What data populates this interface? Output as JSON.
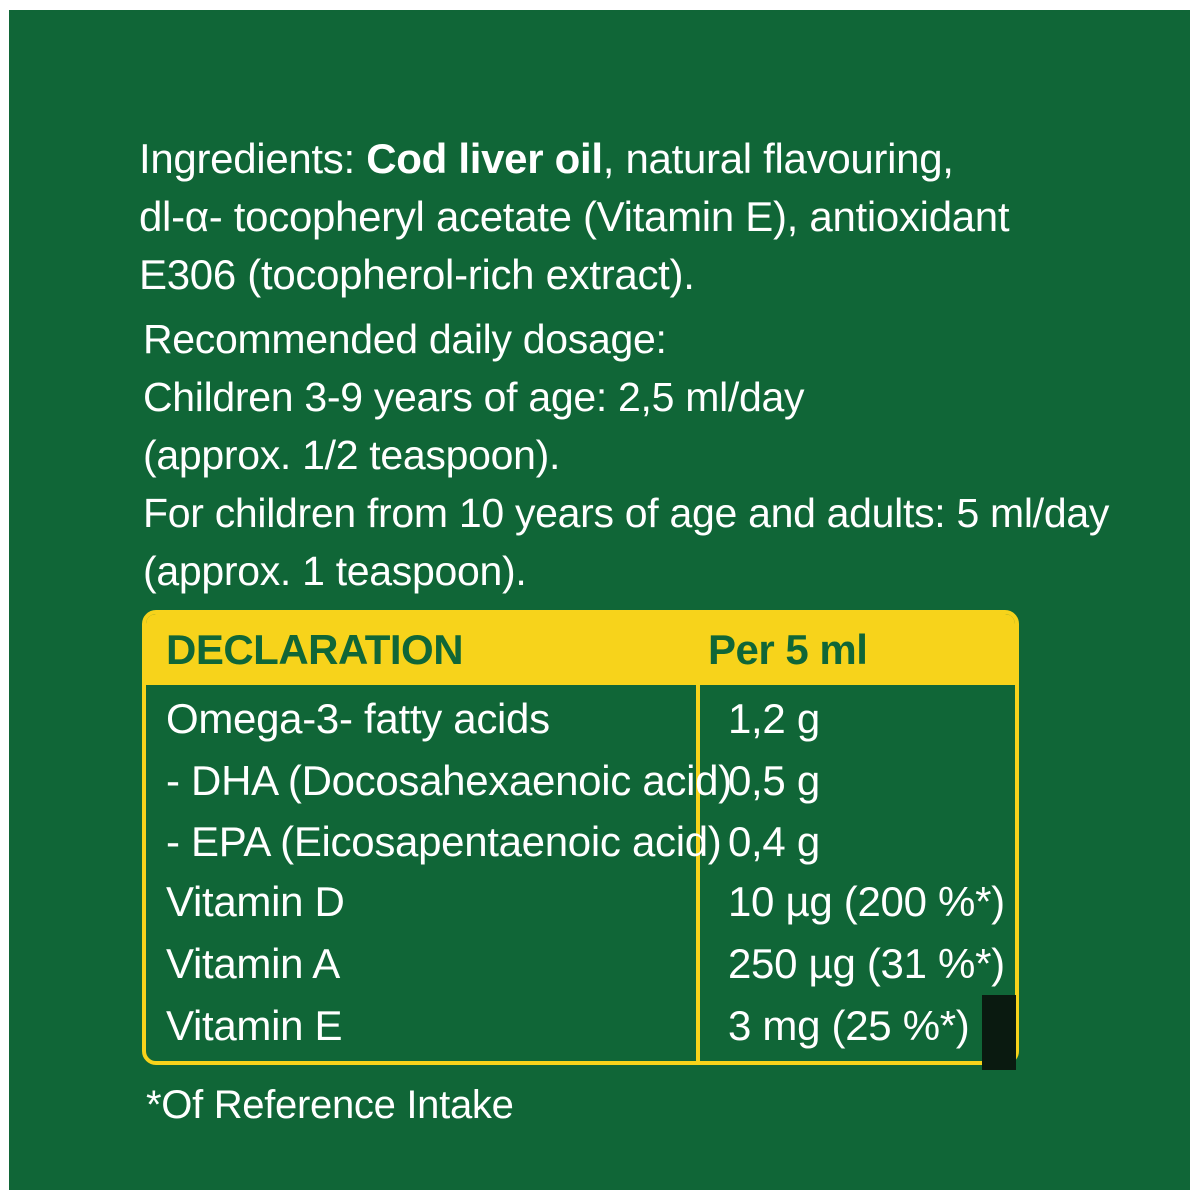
{
  "ingredients": {
    "prefix": "Ingredients: ",
    "highlight": "Cod liver oil",
    "rest_line1": ", natural flavouring,",
    "line2": "dl-α- tocopheryl acetate (Vitamin E), antioxidant",
    "line3": "E306 (tocopherol-rich extract)."
  },
  "dosage": {
    "heading": "Recommended daily dosage:",
    "children_line": "Children 3-9 years of age: 2,5 ml/day",
    "children_approx": "(approx. 1/2 teaspoon).",
    "adults_line": "For children from 10 years of age and adults: 5 ml/day",
    "adults_approx": "(approx. 1 teaspoon)."
  },
  "declaration": {
    "header_label": "DECLARATION",
    "header_value": "Per 5 ml",
    "rows": [
      {
        "name": "Omega-3- fatty acids",
        "value": "1,2 g"
      },
      {
        "name": "- DHA (Docosahexaenoic acid)",
        "value": "0,5 g"
      },
      {
        "name": "- EPA (Eicosapentaenoic  acid)",
        "value": "0,4 g"
      },
      {
        "name": "Vitamin D",
        "value": "10 µg (200 %*)"
      },
      {
        "name": "Vitamin A",
        "value": "250 µg (31 %*)"
      },
      {
        "name": "Vitamin E",
        "value": "3 mg (25 %*)"
      }
    ]
  },
  "footnote": "*Of Reference Intake",
  "colors": {
    "background": "#106637",
    "accent": "#f7d31b",
    "text": "#ffffff"
  }
}
